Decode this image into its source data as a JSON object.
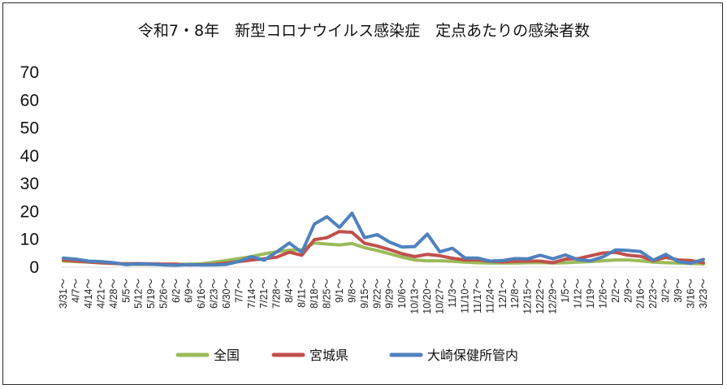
{
  "chart_data": {
    "type": "line",
    "title": "令和7・8年　新型コロナウイルス感染症　定点あたりの感染者数",
    "xlabel": "",
    "ylabel": "",
    "ylim": [
      0,
      70
    ],
    "yticks": [
      "0",
      "10",
      "20",
      "30",
      "40",
      "50",
      "60",
      "70"
    ],
    "grid": false,
    "legend_position": "bottom",
    "tick_suffix": "〜",
    "categories": [
      "3/31",
      "4/7",
      "4/14",
      "4/21",
      "4/28",
      "5/5",
      "5/12",
      "5/19",
      "5/26",
      "6/2",
      "6/9",
      "6/16",
      "6/23",
      "6/30",
      "7/7",
      "7/14",
      "7/21",
      "7/28",
      "8/4",
      "8/11",
      "8/18",
      "8/25",
      "9/1",
      "9/8",
      "9/15",
      "9/22",
      "9/29",
      "10/6",
      "10/13",
      "10/20",
      "10/27",
      "11/3",
      "11/10",
      "11/17",
      "11/24",
      "12/1",
      "12/8",
      "12/15",
      "12/22",
      "12/29",
      "1/5",
      "1/12",
      "1/19",
      "1/26",
      "2/2",
      "2/9",
      "2/16",
      "2/23",
      "3/2",
      "3/9",
      "3/16",
      "3/23"
    ],
    "series": [
      {
        "name": "全国",
        "color": "#9bbb59",
        "values": [
          2.2,
          2.0,
          1.8,
          1.5,
          1.3,
          1.1,
          1.0,
          1.0,
          1.0,
          1.0,
          1.1,
          1.2,
          1.8,
          2.4,
          3.1,
          3.8,
          4.8,
          5.5,
          6.1,
          6.3,
          8.7,
          8.3,
          8.0,
          8.5,
          7.0,
          6.0,
          4.8,
          3.6,
          2.6,
          2.3,
          2.3,
          2.1,
          1.8,
          1.6,
          1.5,
          1.5,
          1.5,
          1.6,
          1.7,
          1.5,
          1.6,
          1.8,
          2.0,
          2.3,
          2.6,
          2.6,
          2.3,
          1.8,
          1.6,
          1.5,
          1.3,
          1.2
        ]
      },
      {
        "name": "宮城県",
        "color": "#c0504d",
        "values": [
          2.6,
          2.2,
          1.9,
          1.6,
          1.4,
          1.2,
          1.3,
          1.2,
          1.1,
          1.1,
          0.8,
          0.9,
          1.0,
          1.5,
          2.0,
          2.6,
          3.0,
          3.6,
          5.4,
          4.3,
          9.9,
          10.6,
          12.8,
          12.5,
          8.6,
          7.6,
          6.3,
          4.8,
          3.8,
          4.6,
          4.1,
          3.2,
          2.6,
          2.6,
          2.1,
          1.9,
          2.1,
          2.2,
          2.2,
          1.6,
          2.9,
          3.1,
          4.1,
          5.1,
          5.3,
          4.3,
          3.9,
          2.3,
          3.5,
          2.6,
          2.4,
          1.6
        ]
      },
      {
        "name": "大崎保健所管内",
        "color": "#4f81bd",
        "values": [
          3.3,
          2.9,
          2.2,
          2.0,
          1.6,
          0.9,
          1.2,
          1.1,
          0.8,
          0.7,
          0.9,
          0.8,
          0.8,
          1.0,
          2.1,
          3.8,
          2.5,
          5.5,
          8.7,
          5.3,
          15.5,
          18.1,
          14.3,
          19.4,
          10.6,
          11.7,
          9.0,
          7.2,
          7.4,
          11.9,
          5.5,
          6.8,
          3.3,
          3.3,
          2.2,
          2.4,
          3.1,
          3.0,
          4.3,
          3.0,
          4.4,
          2.7,
          2.3,
          3.7,
          6.2,
          6.0,
          5.6,
          2.5,
          4.6,
          2.0,
          1.4,
          2.8
        ]
      }
    ]
  }
}
